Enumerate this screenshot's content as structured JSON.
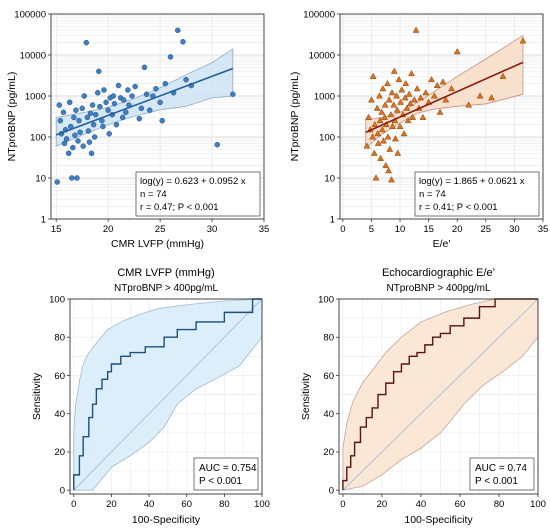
{
  "colors": {
    "blue_dot": "#3f7fc3",
    "blue_line": "#1f5f9a",
    "blue_band": "#cfe3f5",
    "orange_tri": "#d9741f",
    "orange_line": "#8b1a10",
    "orange_band": "#f7ddc5",
    "roc_blue_line": "#1c4f7a",
    "roc_blue_band": "#ddeefb",
    "roc_orange_line": "#5a1410",
    "roc_orange_band": "#fbe7d6",
    "grid": "#d8d8d8",
    "diagonal": "#9bb8d8"
  },
  "chart_data": [
    {
      "type": "scatter",
      "id": "lvfp",
      "title": "",
      "xlabel": "CMR LVFP (mmHg)",
      "ylabel": "NTproBNP (pg/mL)",
      "xlim": [
        14.5,
        35
      ],
      "ylim_log10": [
        0,
        5
      ],
      "y_scale": "log",
      "x_ticks": [
        "15",
        "20",
        "25",
        "30",
        "35"
      ],
      "y_ticks": [
        "1",
        "10",
        "100",
        "1000",
        "10000",
        "100000"
      ],
      "marker": "circle",
      "regression": {
        "intercept": 0.623,
        "slope": 0.0952,
        "x_range": [
          15,
          32
        ]
      },
      "ci_band": {
        "x": [
          15,
          17.5,
          20,
          22.5,
          25,
          27.5,
          30,
          32
        ],
        "lower": [
          60,
          110,
          200,
          320,
          460,
          560,
          900,
          1000
        ],
        "upper": [
          300,
          390,
          530,
          860,
          1600,
          3300,
          6500,
          14000
        ]
      },
      "annotation": [
        "log(y) = 0.623 + 0.0952 x",
        "n = 74",
        "r = 0.47; P < 0.001"
      ],
      "points": [
        [
          15.1,
          8
        ],
        [
          15.3,
          600
        ],
        [
          15.4,
          250
        ],
        [
          15.5,
          120
        ],
        [
          15.7,
          400
        ],
        [
          15.8,
          70
        ],
        [
          15.9,
          150
        ],
        [
          16.0,
          90
        ],
        [
          16.2,
          40
        ],
        [
          16.3,
          700
        ],
        [
          16.4,
          180
        ],
        [
          16.5,
          10
        ],
        [
          16.6,
          55
        ],
        [
          16.7,
          300
        ],
        [
          16.8,
          110
        ],
        [
          16.9,
          450
        ],
        [
          17.0,
          10
        ],
        [
          17.1,
          80
        ],
        [
          17.2,
          250
        ],
        [
          17.3,
          130
        ],
        [
          17.5,
          500
        ],
        [
          17.6,
          60
        ],
        [
          17.7,
          1000
        ],
        [
          17.9,
          20000
        ],
        [
          18.0,
          300
        ],
        [
          18.1,
          140
        ],
        [
          18.2,
          75
        ],
        [
          18.4,
          40
        ],
        [
          18.5,
          600
        ],
        [
          18.6,
          200
        ],
        [
          18.7,
          100
        ],
        [
          18.8,
          350
        ],
        [
          19.0,
          1200
        ],
        [
          19.1,
          4000
        ],
        [
          19.2,
          550
        ],
        [
          19.4,
          250
        ],
        [
          19.5,
          180
        ],
        [
          19.6,
          1400
        ],
        [
          19.8,
          700
        ],
        [
          20.0,
          450
        ],
        [
          20.1,
          120
        ],
        [
          20.2,
          900
        ],
        [
          20.4,
          350
        ],
        [
          20.5,
          1000
        ],
        [
          20.6,
          650
        ],
        [
          20.8,
          200
        ],
        [
          21.0,
          1800
        ],
        [
          21.2,
          900
        ],
        [
          21.4,
          300
        ],
        [
          21.5,
          800
        ],
        [
          21.7,
          400
        ],
        [
          21.9,
          1400
        ],
        [
          22.0,
          600
        ],
        [
          22.3,
          1000
        ],
        [
          22.6,
          1700
        ],
        [
          23.0,
          280
        ],
        [
          23.2,
          500
        ],
        [
          23.5,
          5000
        ],
        [
          23.7,
          1100
        ],
        [
          24.0,
          450
        ],
        [
          24.3,
          1000
        ],
        [
          24.6,
          1500
        ],
        [
          25.0,
          700
        ],
        [
          25.2,
          250
        ],
        [
          25.5,
          2000
        ],
        [
          26.0,
          9000
        ],
        [
          26.3,
          1200
        ],
        [
          26.7,
          40000
        ],
        [
          27.2,
          21000
        ],
        [
          27.5,
          2500
        ],
        [
          28.0,
          1800
        ],
        [
          30.5,
          65
        ],
        [
          32.0,
          1100
        ],
        [
          18.3,
          380
        ]
      ]
    },
    {
      "type": "scatter",
      "id": "ee",
      "title": "",
      "xlabel": "E/e'",
      "ylabel": "NTproBNP (pg/mL)",
      "xlim": [
        -0.5,
        35
      ],
      "ylim_log10": [
        0,
        5
      ],
      "y_scale": "log",
      "x_ticks": [
        "0",
        "5",
        "10",
        "15",
        "20",
        "25",
        "30",
        "35"
      ],
      "y_ticks": [
        "1",
        "10",
        "100",
        "1000",
        "10000",
        "100000"
      ],
      "marker": "triangle",
      "regression": {
        "intercept": 1.865,
        "slope": 0.0621,
        "x_range": [
          4,
          31.5
        ]
      },
      "ci_band": {
        "x": [
          4,
          7,
          10,
          13,
          16,
          20,
          25,
          31.5
        ],
        "lower": [
          55,
          120,
          220,
          380,
          480,
          560,
          640,
          1100
        ],
        "upper": [
          260,
          300,
          400,
          700,
          1300,
          3000,
          8000,
          30000
        ]
      },
      "annotation": [
        "log(y) = 1.865 + 0.0621 x",
        "n = 74",
        "r = 0.41; P < 0.001"
      ],
      "points": [
        [
          4.2,
          60
        ],
        [
          4.5,
          300
        ],
        [
          4.8,
          150
        ],
        [
          5.0,
          800
        ],
        [
          5.2,
          100
        ],
        [
          5.3,
          3000
        ],
        [
          5.5,
          40
        ],
        [
          5.6,
          200
        ],
        [
          5.8,
          10
        ],
        [
          6.0,
          500
        ],
        [
          6.1,
          120
        ],
        [
          6.2,
          70
        ],
        [
          6.4,
          1000
        ],
        [
          6.5,
          250
        ],
        [
          6.6,
          30
        ],
        [
          6.8,
          400
        ],
        [
          6.9,
          150
        ],
        [
          7.0,
          1500
        ],
        [
          7.1,
          80
        ],
        [
          7.3,
          300
        ],
        [
          7.4,
          600
        ],
        [
          7.5,
          20
        ],
        [
          7.6,
          200
        ],
        [
          7.8,
          2000
        ],
        [
          7.9,
          100
        ],
        [
          8.0,
          15
        ],
        [
          8.1,
          800
        ],
        [
          8.2,
          50
        ],
        [
          8.4,
          350
        ],
        [
          8.5,
          9
        ],
        [
          8.6,
          1200
        ],
        [
          8.7,
          180
        ],
        [
          8.9,
          600
        ],
        [
          9.0,
          4000
        ],
        [
          9.1,
          250
        ],
        [
          9.2,
          90
        ],
        [
          9.4,
          1000
        ],
        [
          9.5,
          450
        ],
        [
          9.6,
          40
        ],
        [
          9.8,
          2500
        ],
        [
          10.0,
          180
        ],
        [
          10.1,
          700
        ],
        [
          10.3,
          1400
        ],
        [
          10.5,
          350
        ],
        [
          10.7,
          120
        ],
        [
          10.9,
          900
        ],
        [
          11.0,
          2000
        ],
        [
          11.2,
          500
        ],
        [
          11.4,
          250
        ],
        [
          11.6,
          1100
        ],
        [
          11.8,
          650
        ],
        [
          12.0,
          3500
        ],
        [
          12.2,
          300
        ],
        [
          12.5,
          800
        ],
        [
          12.8,
          40000
        ],
        [
          13.0,
          1500
        ],
        [
          13.3,
          500
        ],
        [
          13.6,
          900
        ],
        [
          14.0,
          300
        ],
        [
          14.5,
          1200
        ],
        [
          15.0,
          700
        ],
        [
          15.5,
          2500
        ],
        [
          16.0,
          1000
        ],
        [
          16.5,
          1800
        ],
        [
          17.0,
          400
        ],
        [
          17.5,
          2200
        ],
        [
          18.0,
          800
        ],
        [
          19.0,
          1500
        ],
        [
          20.0,
          12000
        ],
        [
          22.0,
          600
        ],
        [
          24.0,
          1000
        ],
        [
          26.0,
          900
        ],
        [
          31.5,
          22000
        ],
        [
          28.0,
          3000
        ]
      ]
    },
    {
      "type": "line",
      "id": "roc_lvfp",
      "title": "CMR LVFP (mmHg)",
      "subtitle": "NTproBNP > 400pg/mL",
      "xlabel": "100-Specificity",
      "ylabel": "Sensitivity",
      "xlim": [
        -2,
        100
      ],
      "ylim": [
        -2,
        100
      ],
      "x_ticks": [
        "0",
        "20",
        "40",
        "60",
        "80",
        "100"
      ],
      "y_ticks": [
        "0",
        "20",
        "40",
        "60",
        "80",
        "100"
      ],
      "annotation": [
        "AUC = 0.754",
        "P < 0.001"
      ],
      "series": [
        {
          "x": [
            0,
            0,
            3,
            3,
            5,
            5,
            8,
            8,
            10,
            10,
            12,
            12,
            15,
            15,
            18,
            18,
            20,
            20,
            25,
            25,
            30,
            30,
            38,
            38,
            48,
            48,
            55,
            55,
            65,
            65,
            80,
            80,
            95,
            95,
            100
          ],
          "y": [
            0,
            8,
            8,
            18,
            18,
            28,
            28,
            38,
            38,
            45,
            45,
            53,
            53,
            58,
            58,
            62,
            62,
            66,
            66,
            70,
            70,
            72,
            72,
            75,
            75,
            80,
            80,
            84,
            84,
            88,
            88,
            93,
            93,
            100,
            100
          ]
        }
      ],
      "ci_upper": {
        "x": [
          0,
          1,
          3,
          5,
          8,
          12,
          18,
          25,
          35,
          45,
          60,
          80,
          100
        ],
        "y": [
          30,
          45,
          57,
          66,
          72,
          77,
          84,
          88,
          92,
          95,
          97,
          99,
          100
        ]
      },
      "ci_lower": {
        "x": [
          0,
          10,
          20,
          30,
          40,
          48,
          55,
          65,
          75,
          88,
          100
        ],
        "y": [
          0,
          0,
          12,
          18,
          25,
          33,
          45,
          53,
          58,
          65,
          80
        ]
      }
    },
    {
      "type": "line",
      "id": "roc_ee",
      "title": "Echocardiographic E/e’",
      "subtitle": "NTproBNP > 400pg/mL",
      "xlabel": "100-Specificity",
      "ylabel": "Sensitivity",
      "xlim": [
        -2,
        100
      ],
      "ylim": [
        -2,
        100
      ],
      "x_ticks": [
        "0",
        "20",
        "40",
        "60",
        "80",
        "100"
      ],
      "y_ticks": [
        "0",
        "20",
        "40",
        "60",
        "80",
        "100"
      ],
      "annotation": [
        "AUC = 0.74",
        "P < 0.001"
      ],
      "series": [
        {
          "x": [
            0,
            0,
            2,
            2,
            4,
            4,
            6,
            6,
            9,
            9,
            12,
            12,
            15,
            15,
            18,
            18,
            22,
            22,
            26,
            26,
            30,
            30,
            34,
            34,
            38,
            38,
            42,
            42,
            46,
            46,
            50,
            50,
            55,
            55,
            62,
            62,
            70,
            70,
            78,
            78,
            100
          ],
          "y": [
            0,
            5,
            5,
            12,
            12,
            18,
            18,
            25,
            25,
            33,
            33,
            38,
            38,
            43,
            43,
            50,
            50,
            56,
            56,
            62,
            62,
            66,
            66,
            70,
            70,
            72,
            72,
            76,
            76,
            80,
            80,
            82,
            82,
            86,
            86,
            90,
            90,
            96,
            96,
            100,
            100
          ]
        }
      ],
      "ci_upper": {
        "x": [
          0,
          2,
          5,
          10,
          16,
          22,
          30,
          40,
          52,
          65,
          78,
          100
        ],
        "y": [
          22,
          35,
          46,
          56,
          64,
          72,
          80,
          88,
          93,
          97,
          100,
          100
        ]
      },
      "ci_lower": {
        "x": [
          0,
          10,
          20,
          30,
          40,
          50,
          55,
          62,
          72,
          82,
          92,
          100
        ],
        "y": [
          0,
          2,
          8,
          16,
          22,
          30,
          36,
          45,
          55,
          62,
          70,
          80
        ]
      }
    }
  ]
}
